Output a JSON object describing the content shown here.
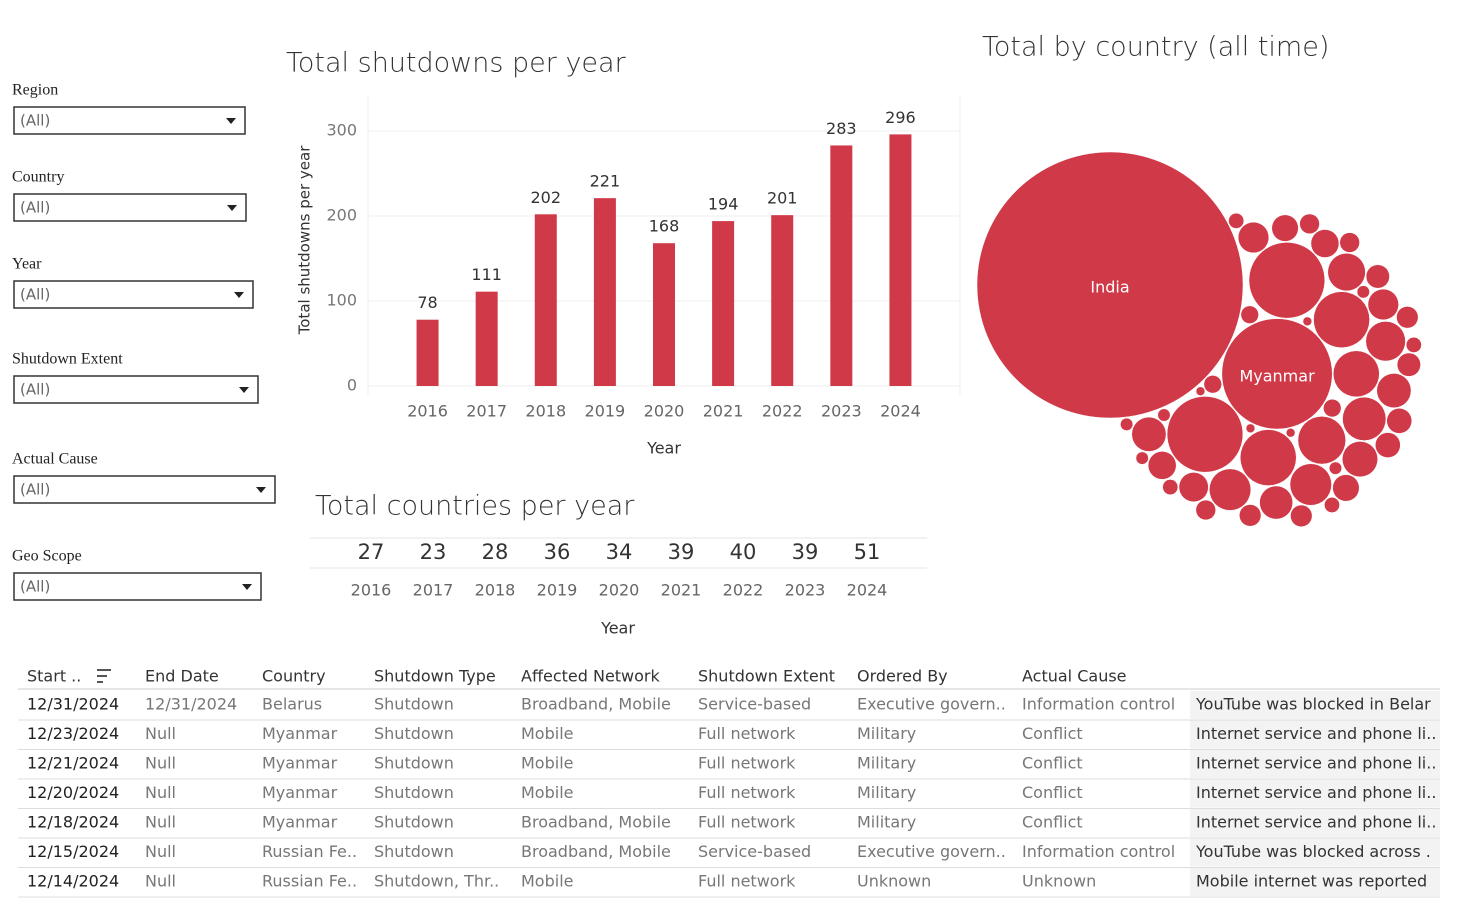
{
  "filters": [
    {
      "label": "Region",
      "value": "(All)"
    },
    {
      "label": "Country",
      "value": "(All)"
    },
    {
      "label": "Year",
      "value": "(All)"
    },
    {
      "label": "Shutdown Extent",
      "value": "(All)"
    },
    {
      "label": "Actual Cause",
      "value": "(All)"
    },
    {
      "label": "Geo Scope",
      "value": "(All)"
    }
  ],
  "chart_data": [
    {
      "type": "bar",
      "title": "Total shutdowns per year",
      "x_label": "Year",
      "y_label": "Total shutdowns per year",
      "categories": [
        "2016",
        "2017",
        "2018",
        "2019",
        "2020",
        "2021",
        "2022",
        "2023",
        "2024"
      ],
      "values": [
        78,
        111,
        202,
        221,
        168,
        194,
        201,
        283,
        296
      ],
      "color": "#d03a48",
      "ylim": [
        0,
        340
      ],
      "yticks": [
        0,
        100,
        200,
        300
      ],
      "grid": true
    },
    {
      "type": "text_table",
      "title": "Total countries per year",
      "x_label": "Year",
      "categories": [
        "2016",
        "2017",
        "2018",
        "2019",
        "2020",
        "2021",
        "2022",
        "2023",
        "2024"
      ],
      "values": [
        27,
        23,
        28,
        36,
        34,
        39,
        40,
        39,
        51
      ]
    },
    {
      "type": "bubble",
      "title": "Total by country (all time)",
      "color": "#d03a48",
      "categories": [
        "India",
        "Myanmar",
        null,
        null,
        null,
        null,
        null,
        null,
        null,
        null,
        null,
        null,
        null,
        null,
        null,
        null,
        null,
        null,
        null,
        null,
        null,
        null,
        null,
        null,
        null,
        null,
        null,
        null,
        null,
        null,
        null,
        null,
        null,
        null,
        null,
        null,
        null,
        null,
        null,
        null,
        null,
        null,
        null,
        null,
        null,
        null,
        null,
        null,
        null,
        null
      ],
      "values": [
        900,
        155,
        73,
        73,
        40,
        40,
        29,
        27,
        24,
        22,
        22,
        20,
        18,
        16,
        15,
        15,
        14,
        12,
        12,
        11,
        10,
        10,
        9,
        9,
        8,
        8,
        7,
        7,
        6,
        6,
        6,
        5,
        5,
        5,
        4,
        4,
        4,
        3,
        3,
        3,
        3,
        2,
        2,
        2,
        2,
        2,
        1,
        1,
        1,
        1
      ]
    }
  ],
  "table": {
    "columns": [
      "Start ..",
      "End Date",
      "Country",
      "Shutdown Type",
      "Affected Network",
      "Shutdown Extent",
      "Ordered By",
      "Actual Cause"
    ],
    "rows": [
      [
        "12/31/2024",
        "12/31/2024",
        "Belarus",
        "Shutdown",
        "Broadband, Mobile",
        "Service-based",
        "Executive govern..",
        "Information control",
        "YouTube was blocked in Belar"
      ],
      [
        "12/23/2024",
        "Null",
        "Myanmar",
        "Shutdown",
        "Mobile",
        "Full network",
        "Military",
        "Conflict",
        "Internet service and phone li.."
      ],
      [
        "12/21/2024",
        "Null",
        "Myanmar",
        "Shutdown",
        "Mobile",
        "Full network",
        "Military",
        "Conflict",
        "Internet service and phone li.."
      ],
      [
        "12/20/2024",
        "Null",
        "Myanmar",
        "Shutdown",
        "Mobile",
        "Full network",
        "Military",
        "Conflict",
        "Internet service and phone li.."
      ],
      [
        "12/18/2024",
        "Null",
        "Myanmar",
        "Shutdown",
        "Broadband, Mobile",
        "Full network",
        "Military",
        "Conflict",
        "Internet service and phone li.."
      ],
      [
        "12/15/2024",
        "Null",
        "Russian Fe..",
        "Shutdown",
        "Broadband, Mobile",
        "Service-based",
        "Executive govern..",
        "Information control",
        "YouTube was blocked across ."
      ],
      [
        "12/14/2024",
        "Null",
        "Russian Fe..",
        "Shutdown, Thr..",
        "Mobile",
        "Full network",
        "Unknown",
        "Unknown",
        "Mobile internet was reported"
      ]
    ]
  }
}
